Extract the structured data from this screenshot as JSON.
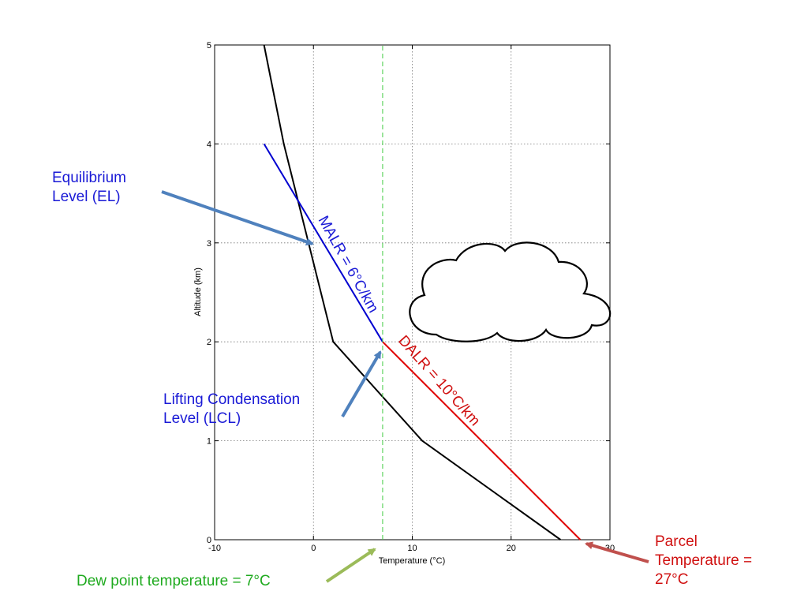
{
  "chart_data": {
    "type": "line",
    "xlabel": "Temperature (°C)",
    "ylabel": "Altitude (km)",
    "xlim": [
      -10,
      30
    ],
    "ylim": [
      0,
      5
    ],
    "xticks": [
      "-10",
      "0",
      "10",
      "20",
      "30"
    ],
    "yticks": [
      "0",
      "1",
      "2",
      "3",
      "4",
      "5"
    ],
    "grid": true,
    "series": [
      {
        "id": "environment",
        "color": "#000000",
        "x": [
          25,
          11,
          2,
          -3,
          -5
        ],
        "y": [
          0,
          1,
          2,
          4,
          5
        ]
      },
      {
        "id": "dalr",
        "color": "#e00000",
        "x": [
          27,
          7
        ],
        "y": [
          0,
          2
        ]
      },
      {
        "id": "malr",
        "color": "#0000d0",
        "x": [
          7,
          -5
        ],
        "y": [
          2,
          4
        ]
      },
      {
        "id": "dewpoint",
        "color": "#44cc44",
        "dashed": true,
        "x": [
          7,
          7
        ],
        "y": [
          0,
          5
        ]
      }
    ],
    "annotations": {
      "malr_label": "MALR = 6°C/km",
      "dalr_label": "DALR = 10°C/km",
      "el_label": [
        "Equilibrium",
        "Level (EL)"
      ],
      "lcl_label": [
        "Lifting Condensation",
        "Level (LCL)"
      ],
      "parcel_label": [
        "Parcel",
        "Temperature =",
        "27°C"
      ],
      "dewpoint_label": "Dew point temperature = 7°C"
    },
    "colors": {
      "blue_text": "#1a1ad6",
      "red_text": "#d01010",
      "green_text": "#1faa1f",
      "arrow_blue": "#4f81bd",
      "arrow_red": "#c0504d",
      "arrow_green": "#9bbb59"
    }
  }
}
